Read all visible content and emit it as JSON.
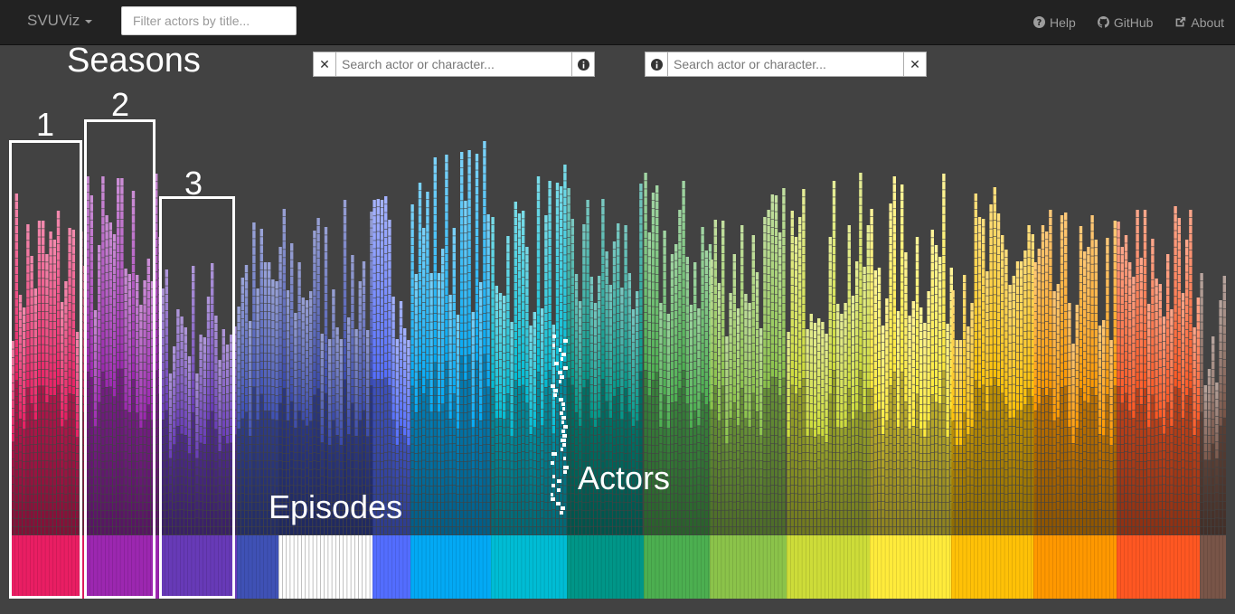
{
  "navbar": {
    "brand": "SVUViz",
    "filter_placeholder": "Filter actors by title...",
    "links": {
      "help": "Help",
      "github": "GitHub",
      "about": "About"
    }
  },
  "search_left": {
    "placeholder": "Search actor or character..."
  },
  "search_right": {
    "placeholder": "Search actor or character..."
  },
  "annotations": {
    "seasons": "Seasons",
    "season_1": "1",
    "season_2": "2",
    "season_3": "3",
    "episodes": "Episodes",
    "actors": "Actors"
  },
  "colors": {
    "navbar_bg": "#222222",
    "page_bg": "#424242",
    "season_palette": [
      "#e91e63",
      "#9c27b0",
      "#673ab7",
      "#3f51b5",
      "#ffffff",
      "#536dfe",
      "#03a9f4",
      "#00bcd4",
      "#009688",
      "#4caf50",
      "#8bc34a",
      "#cddc39",
      "#ffeb3b",
      "#ffc107",
      "#ff9800",
      "#ff5722",
      "#795548"
    ]
  }
}
